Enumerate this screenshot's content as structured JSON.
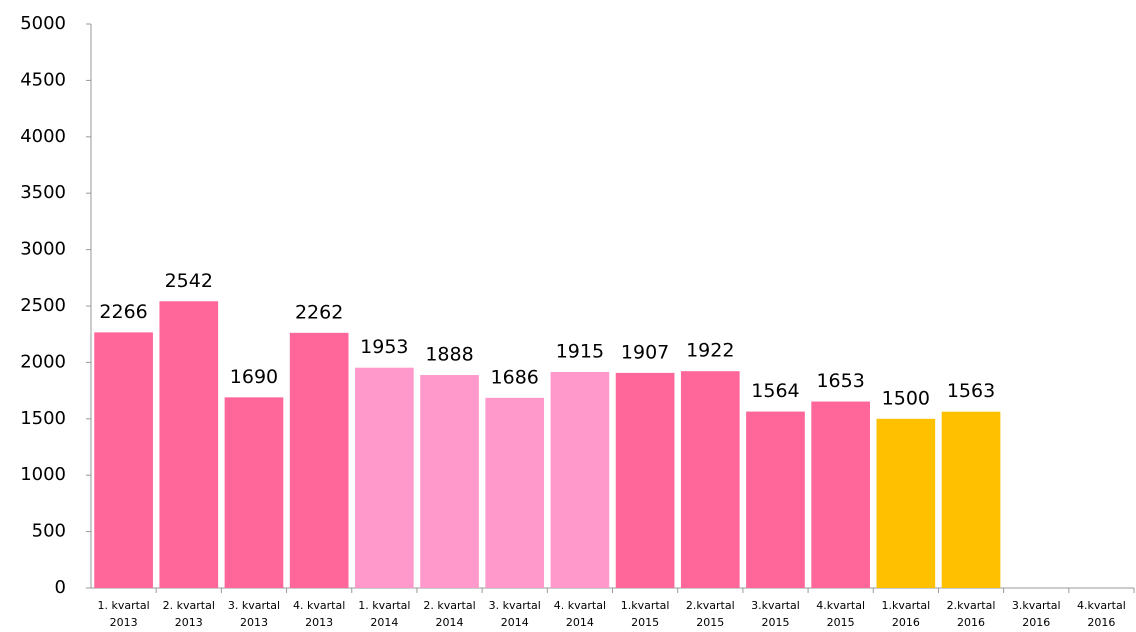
{
  "chart_data": {
    "type": "bar",
    "categories": [
      [
        "1. kvartal",
        "2013"
      ],
      [
        "2. kvartal",
        "2013"
      ],
      [
        "3. kvartal",
        "2013"
      ],
      [
        "4. kvartal",
        "2013"
      ],
      [
        "1. kvartal",
        "2014"
      ],
      [
        "2. kvartal",
        "2014"
      ],
      [
        "3. kvartal",
        "2014"
      ],
      [
        "4. kvartal",
        "2014"
      ],
      [
        "1.kvartal",
        "2015"
      ],
      [
        "2.kvartal",
        "2015"
      ],
      [
        "3.kvartal",
        "2015"
      ],
      [
        "4.kvartal",
        "2015"
      ],
      [
        "1.kvartal",
        "2016"
      ],
      [
        "2.kvartal",
        "2016"
      ],
      [
        "3.kvartal",
        "2016"
      ],
      [
        "4.kvartal",
        "2016"
      ]
    ],
    "values": [
      2266,
      2542,
      1690,
      2262,
      1953,
      1888,
      1686,
      1915,
      1907,
      1922,
      1564,
      1653,
      1500,
      1563,
      null,
      null
    ],
    "colors": [
      "#ff6699",
      "#ff6699",
      "#ff6699",
      "#ff6699",
      "#ff99cc",
      "#ff99cc",
      "#ff99cc",
      "#ff99cc",
      "#ff6699",
      "#ff6699",
      "#ff6699",
      "#ff6699",
      "#ffc000",
      "#ffc000",
      "#ffc000",
      "#ffc000"
    ],
    "ylim": [
      0,
      5000
    ],
    "yticks": [
      0,
      500,
      1000,
      1500,
      2000,
      2500,
      3000,
      3500,
      4000,
      4500,
      5000
    ],
    "grid": false
  }
}
